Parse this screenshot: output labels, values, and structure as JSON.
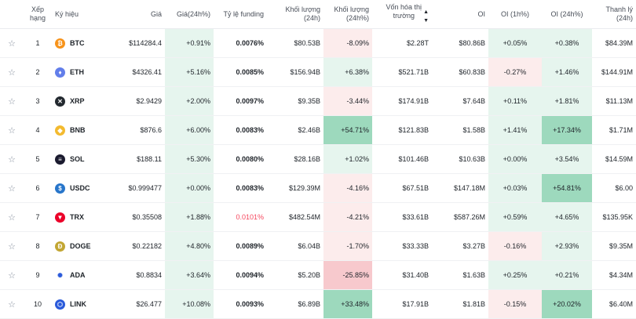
{
  "headers": {
    "rank": "Xếp hạng",
    "symbol": "Ký hiệu",
    "price": "Giá",
    "price_change": "Giá(24h%)",
    "funding": "Tỷ lệ funding",
    "volume": "Khối lượng (24h)",
    "volume_change": "Khối lượng (24h%)",
    "mcap_line1": "Vốn hóa thị",
    "mcap_line2": "trường",
    "oi": "OI",
    "oi_1h": "OI (1h%)",
    "oi_24h": "OI (24h%)",
    "liq": "Thanh lý (24h)"
  },
  "colors": {
    "green_bg_light": "#e6f5ee",
    "green_bg_strong": "#9dd9bd",
    "red_bg_light": "#fcecec",
    "red_bg_strong": "#f7c9cd",
    "negative_funding": "#f6465d"
  },
  "rows": [
    {
      "rank": "1",
      "symbol": "BTC",
      "icon": "bitcoin-icon",
      "icon_color": "#f7931a",
      "icon_glyph": "₿",
      "price": "$114284.4",
      "price_change": "+0.91%",
      "funding": "0.0076%",
      "volume": "$80.53B",
      "volume_change": "-8.09%",
      "mcap": "$2.28T",
      "oi": "$80.86B",
      "oi_1h": "+0.05%",
      "oi_24h": "+0.38%",
      "liq": "$84.39M"
    },
    {
      "rank": "2",
      "symbol": "ETH",
      "icon": "ethereum-icon",
      "icon_color": "#627eea",
      "icon_glyph": "♦",
      "price": "$4326.41",
      "price_change": "+5.16%",
      "funding": "0.0085%",
      "volume": "$156.94B",
      "volume_change": "+6.38%",
      "mcap": "$521.71B",
      "oi": "$60.83B",
      "oi_1h": "-0.27%",
      "oi_24h": "+1.46%",
      "liq": "$144.91M"
    },
    {
      "rank": "3",
      "symbol": "XRP",
      "icon": "xrp-icon",
      "icon_color": "#23292f",
      "icon_glyph": "✕",
      "price": "$2.9429",
      "price_change": "+2.00%",
      "funding": "0.0097%",
      "volume": "$9.35B",
      "volume_change": "-3.44%",
      "mcap": "$174.91B",
      "oi": "$7.64B",
      "oi_1h": "+0.11%",
      "oi_24h": "+1.81%",
      "liq": "$11.13M"
    },
    {
      "rank": "4",
      "symbol": "BNB",
      "icon": "bnb-icon",
      "icon_color": "#f3ba2f",
      "icon_glyph": "◆",
      "price": "$876.6",
      "price_change": "+6.00%",
      "funding": "0.0083%",
      "volume": "$2.46B",
      "volume_change": "+54.71%",
      "mcap": "$121.83B",
      "oi": "$1.58B",
      "oi_1h": "+1.41%",
      "oi_24h": "+17.34%",
      "liq": "$1.71M"
    },
    {
      "rank": "5",
      "symbol": "SOL",
      "icon": "solana-icon",
      "icon_color": "#1b1b2f",
      "icon_glyph": "≡",
      "price": "$188.11",
      "price_change": "+5.30%",
      "funding": "0.0080%",
      "volume": "$28.16B",
      "volume_change": "+1.02%",
      "mcap": "$101.46B",
      "oi": "$10.63B",
      "oi_1h": "+0.00%",
      "oi_24h": "+3.54%",
      "liq": "$14.59M"
    },
    {
      "rank": "6",
      "symbol": "USDC",
      "icon": "usdc-icon",
      "icon_color": "#2775ca",
      "icon_glyph": "$",
      "price": "$0.999477",
      "price_change": "+0.00%",
      "funding": "0.0083%",
      "volume": "$129.39M",
      "volume_change": "-4.16%",
      "mcap": "$67.51B",
      "oi": "$147.18M",
      "oi_1h": "+0.03%",
      "oi_24h": "+54.81%",
      "liq": "$6.00"
    },
    {
      "rank": "7",
      "symbol": "TRX",
      "icon": "tron-icon",
      "icon_color": "#eb0029",
      "icon_glyph": "▼",
      "price": "$0.35508",
      "price_change": "+1.88%",
      "funding": "0.0101%",
      "volume": "$482.54M",
      "volume_change": "-4.21%",
      "mcap": "$33.61B",
      "oi": "$587.26M",
      "oi_1h": "+0.59%",
      "oi_24h": "+4.65%",
      "liq": "$135.95K"
    },
    {
      "rank": "8",
      "symbol": "DOGE",
      "icon": "dogecoin-icon",
      "icon_color": "#c2a633",
      "icon_glyph": "Ð",
      "price": "$0.22182",
      "price_change": "+4.80%",
      "funding": "0.0089%",
      "volume": "$6.04B",
      "volume_change": "-1.70%",
      "mcap": "$33.33B",
      "oi": "$3.27B",
      "oi_1h": "-0.16%",
      "oi_24h": "+2.93%",
      "liq": "$9.35M"
    },
    {
      "rank": "9",
      "symbol": "ADA",
      "icon": "cardano-icon",
      "icon_color": "#ffffff",
      "icon_glyph": "✺",
      "price": "$0.8834",
      "price_change": "+3.64%",
      "funding": "0.0094%",
      "volume": "$5.20B",
      "volume_change": "-25.85%",
      "mcap": "$31.40B",
      "oi": "$1.63B",
      "oi_1h": "+0.25%",
      "oi_24h": "+0.21%",
      "liq": "$4.34M"
    },
    {
      "rank": "10",
      "symbol": "LINK",
      "icon": "chainlink-icon",
      "icon_color": "#2a5ada",
      "icon_glyph": "⬡",
      "price": "$26.477",
      "price_change": "+10.08%",
      "funding": "0.0093%",
      "volume": "$6.89B",
      "volume_change": "+33.48%",
      "mcap": "$17.91B",
      "oi": "$1.81B",
      "oi_1h": "-0.15%",
      "oi_24h": "+20.02%",
      "liq": "$6.40M"
    }
  ]
}
